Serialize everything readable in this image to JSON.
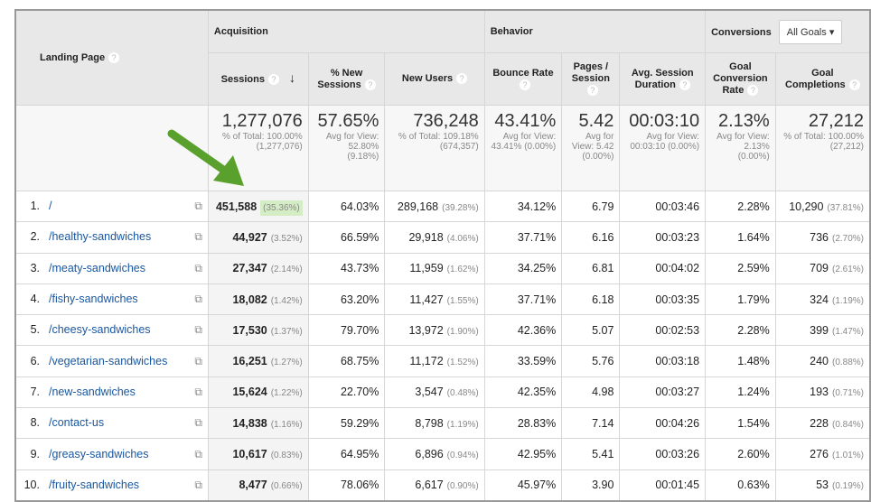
{
  "header": {
    "landing_page": "Landing Page",
    "acquisition": "Acquisition",
    "behavior": "Behavior",
    "conversions": "Conversions",
    "goal_select": "All Goals",
    "help": "?",
    "sort_icon": "arrow-down-icon",
    "columns": [
      "Sessions",
      "% New Sessions",
      "New Users",
      "Bounce Rate",
      "Pages / Session",
      "Avg. Session Duration",
      "Goal Conversion Rate",
      "Goal Completions"
    ]
  },
  "totals": [
    {
      "value": "1,277,076",
      "sub": "% of Total: 100.00% (1,277,076)"
    },
    {
      "value": "57.65%",
      "sub": "Avg for View: 52.80% (9.18%)"
    },
    {
      "value": "736,248",
      "sub": "% of Total: 109.18% (674,357)"
    },
    {
      "value": "43.41%",
      "sub": "Avg for View: 43.41% (0.00%)"
    },
    {
      "value": "5.42",
      "sub": "Avg for View: 5.42 (0.00%)"
    },
    {
      "value": "00:03:10",
      "sub": "Avg for View: 00:03:10 (0.00%)"
    },
    {
      "value": "2.13%",
      "sub": "Avg for View: 2.13% (0.00%)"
    },
    {
      "value": "27,212",
      "sub": "% of Total: 100.00% (27,212)"
    }
  ],
  "rows": [
    {
      "n": "1.",
      "page": "/",
      "sessions": "451,588",
      "sp": "(35.36%)",
      "new": "64.03%",
      "users": "289,168",
      "up": "(39.28%)",
      "bounce": "34.12%",
      "pages": "6.79",
      "dur": "00:03:46",
      "conv": "2.28%",
      "comp": "10,290",
      "cp": "(37.81%)"
    },
    {
      "n": "2.",
      "page": "/healthy-sandwiches",
      "sessions": "44,927",
      "sp": "(3.52%)",
      "new": "66.59%",
      "users": "29,918",
      "up": "(4.06%)",
      "bounce": "37.71%",
      "pages": "6.16",
      "dur": "00:03:23",
      "conv": "1.64%",
      "comp": "736",
      "cp": "(2.70%)"
    },
    {
      "n": "3.",
      "page": "/meaty-sandwiches",
      "sessions": "27,347",
      "sp": "(2.14%)",
      "new": "43.73%",
      "users": "11,959",
      "up": "(1.62%)",
      "bounce": "34.25%",
      "pages": "6.81",
      "dur": "00:04:02",
      "conv": "2.59%",
      "comp": "709",
      "cp": "(2.61%)"
    },
    {
      "n": "4.",
      "page": "/fishy-sandwiches",
      "sessions": "18,082",
      "sp": "(1.42%)",
      "new": "63.20%",
      "users": "11,427",
      "up": "(1.55%)",
      "bounce": "37.71%",
      "pages": "6.18",
      "dur": "00:03:35",
      "conv": "1.79%",
      "comp": "324",
      "cp": "(1.19%)"
    },
    {
      "n": "5.",
      "page": "/cheesy-sandwiches",
      "sessions": "17,530",
      "sp": "(1.37%)",
      "new": "79.70%",
      "users": "13,972",
      "up": "(1.90%)",
      "bounce": "42.36%",
      "pages": "5.07",
      "dur": "00:02:53",
      "conv": "2.28%",
      "comp": "399",
      "cp": "(1.47%)"
    },
    {
      "n": "6.",
      "page": "/vegetarian-sandwiches",
      "sessions": "16,251",
      "sp": "(1.27%)",
      "new": "68.75%",
      "users": "11,172",
      "up": "(1.52%)",
      "bounce": "33.59%",
      "pages": "5.76",
      "dur": "00:03:18",
      "conv": "1.48%",
      "comp": "240",
      "cp": "(0.88%)"
    },
    {
      "n": "7.",
      "page": "/new-sandwiches",
      "sessions": "15,624",
      "sp": "(1.22%)",
      "new": "22.70%",
      "users": "3,547",
      "up": "(0.48%)",
      "bounce": "42.35%",
      "pages": "4.98",
      "dur": "00:03:27",
      "conv": "1.24%",
      "comp": "193",
      "cp": "(0.71%)"
    },
    {
      "n": "8.",
      "page": "/contact-us",
      "sessions": "14,838",
      "sp": "(1.16%)",
      "new": "59.29%",
      "users": "8,798",
      "up": "(1.19%)",
      "bounce": "28.83%",
      "pages": "7.14",
      "dur": "00:04:26",
      "conv": "1.54%",
      "comp": "228",
      "cp": "(0.84%)"
    },
    {
      "n": "9.",
      "page": "/greasy-sandwiches",
      "sessions": "10,617",
      "sp": "(0.83%)",
      "new": "64.95%",
      "users": "6,896",
      "up": "(0.94%)",
      "bounce": "42.95%",
      "pages": "5.41",
      "dur": "00:03:26",
      "conv": "2.60%",
      "comp": "276",
      "cp": "(1.01%)"
    },
    {
      "n": "10.",
      "page": "/fruity-sandwiches",
      "sessions": "8,477",
      "sp": "(0.66%)",
      "new": "78.06%",
      "users": "6,617",
      "up": "(0.90%)",
      "bounce": "45.97%",
      "pages": "3.90",
      "dur": "00:01:45",
      "conv": "0.63%",
      "comp": "53",
      "cp": "(0.19%)"
    }
  ],
  "colors": {
    "highlight": "#d4edc4",
    "arrow": "#5aa02c",
    "link": "#1a57a0"
  }
}
